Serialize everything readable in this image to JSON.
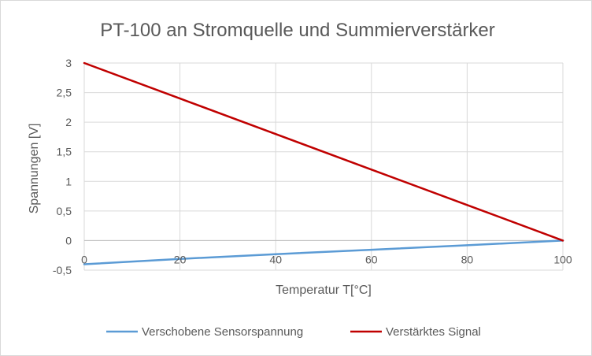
{
  "chart_data": {
    "type": "line",
    "title": "PT-100 an Stromquelle und Summierverstärker",
    "xlabel": "Temperatur T[°C]",
    "ylabel": "Spannungen [V]",
    "xlim": [
      0,
      100
    ],
    "ylim": [
      -0.5,
      3
    ],
    "x_ticks": [
      0,
      20,
      40,
      60,
      80,
      100
    ],
    "x_tick_labels": [
      "0",
      "20",
      "40",
      "60",
      "80",
      "100"
    ],
    "y_ticks": [
      -0.5,
      0,
      0.5,
      1,
      1.5,
      2,
      2.5,
      3
    ],
    "y_tick_labels": [
      "-0,5",
      "0",
      "0,5",
      "1",
      "1,5",
      "2",
      "2,5",
      "3"
    ],
    "grid": true,
    "legend_position": "bottom",
    "series": [
      {
        "name": "Verschobene Sensorspannung",
        "color": "#5b9bd5",
        "x": [
          0,
          20,
          40,
          60,
          80,
          100
        ],
        "y": [
          -0.4,
          -0.31,
          -0.23,
          -0.155,
          -0.08,
          0
        ]
      },
      {
        "name": "Verstärktes Signal",
        "color": "#c00000",
        "x": [
          0,
          20,
          40,
          60,
          80,
          100
        ],
        "y": [
          3,
          2.4,
          1.8,
          1.2,
          0.6,
          0
        ]
      }
    ]
  }
}
